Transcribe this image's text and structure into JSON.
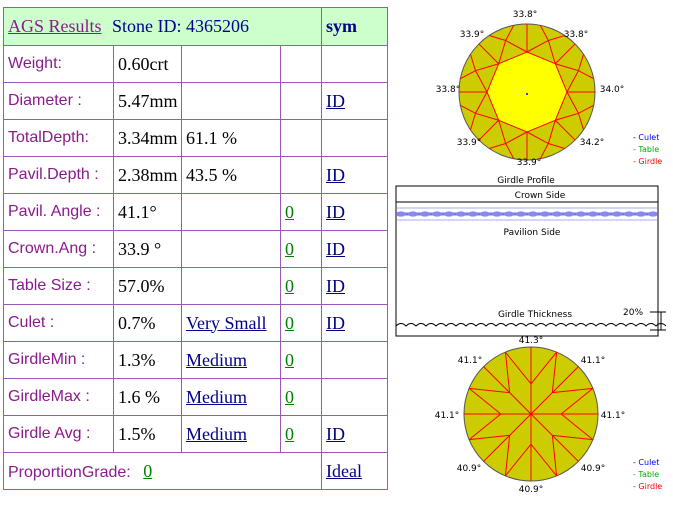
{
  "header": {
    "title": "AGS  Results",
    "stone_id": "Stone ID:  4365206",
    "sym": "sym"
  },
  "rows": [
    {
      "label": "Weight:",
      "value": "0.60crt",
      "extra": "",
      "link": "",
      "zero": "",
      "id": ""
    },
    {
      "label": "Diameter :",
      "value": "5.47mm",
      "extra": "",
      "link": "",
      "zero": "",
      "id": "ID"
    },
    {
      "label": "TotalDepth:",
      "value": "3.34mm",
      "extra": "61.1 %",
      "link": "",
      "zero": "",
      "id": ""
    },
    {
      "label": "Pavil.Depth :",
      "value": "2.38mm",
      "extra": "43.5 %",
      "link": "",
      "zero": "",
      "id": "ID"
    },
    {
      "label": "Pavil. Angle :",
      "value": "41.1°",
      "extra": "",
      "link": "",
      "zero": "0",
      "id": "ID"
    },
    {
      "label": "Crown.Ang :",
      "value": "33.9 °",
      "extra": "",
      "link": "",
      "zero": "0",
      "id": "ID"
    },
    {
      "label": "Table Size :",
      "value": "57.0%",
      "extra": "",
      "link": "",
      "zero": "0",
      "id": "ID"
    },
    {
      "label": "Culet :",
      "value": "0.7%",
      "extra": "",
      "link": "Very Small",
      "zero": "0",
      "id": "ID"
    },
    {
      "label": "GirdleMin :",
      "value": "1.3%",
      "extra": "",
      "link": "Medium",
      "zero": "0",
      "id": ""
    },
    {
      "label": "GirdleMax :",
      "value": "1.6 %",
      "extra": "",
      "link": "Medium",
      "zero": "0",
      "id": ""
    },
    {
      "label": "Girdle Avg :",
      "value": "1.5%",
      "extra": "",
      "link": "Medium",
      "zero": "0",
      "id": "ID"
    }
  ],
  "grade": {
    "label": "ProportionGrade:",
    "zero": "0",
    "value": "Ideal"
  },
  "crown_diagram": {
    "angles": {
      "top": "33.8°",
      "top_left": "33.9°",
      "top_right": "33.8°",
      "left": "33.8°",
      "right": "34.0°",
      "bottom_left": "33.9°",
      "bottom_right": "34.2°",
      "bottom": "33.9°"
    },
    "legend": {
      "culet": "- Culet",
      "table": "- Table",
      "girdle": "- Girdle"
    },
    "colors": {
      "fill": "#cccc00",
      "table": "#ffff00",
      "lines": "#ff0000",
      "outline": "#555555",
      "culet": "#0000ff",
      "table_legend": "#00aa00",
      "girdle_legend": "#ff0000"
    }
  },
  "girdle_profile": {
    "title": "Girdle Profile",
    "crown_side": "Crown Side",
    "pavilion_side": "Pavilion Side",
    "thickness_label": "Girdle Thickness",
    "percent": "20%"
  },
  "pavilion_diagram": {
    "angles": {
      "top": "41.3°",
      "top_left": "41.1°",
      "top_right": "41.1°",
      "left": "41.1°",
      "right": "41.1°",
      "bottom_left": "40.9°",
      "bottom_right": "40.9°",
      "bottom": "40.9°"
    },
    "legend": {
      "culet": "- Culet",
      "table": "- Table",
      "girdle": "- Girdle"
    }
  }
}
